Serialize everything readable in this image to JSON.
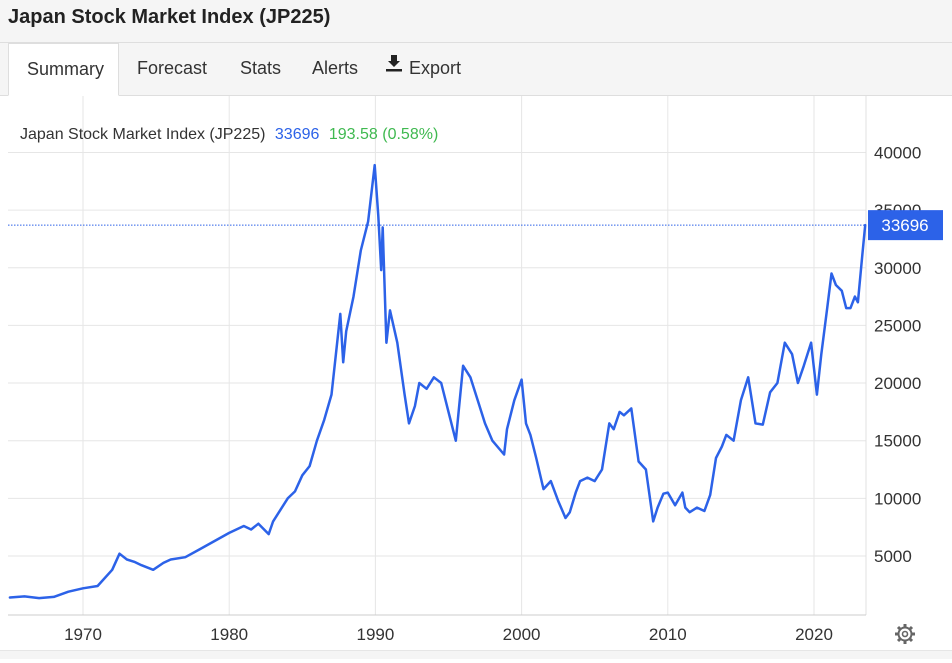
{
  "page": {
    "title": "Japan Stock Market Index (JP225)"
  },
  "tabs": [
    {
      "label": "Summary",
      "active": true
    },
    {
      "label": "Forecast",
      "active": false
    },
    {
      "label": "Stats",
      "active": false
    },
    {
      "label": "Alerts",
      "active": false
    },
    {
      "label": "Export",
      "active": false,
      "icon": "download-icon"
    }
  ],
  "legend": {
    "name": "Japan Stock Market Index (JP225)",
    "value": "33696",
    "change": "193.58 (0.58%)"
  },
  "price_label": "33696",
  "colors": {
    "line": "#2c62e8",
    "value_text": "#2c62e8",
    "change_text": "#3fb950",
    "price_badge": "#2c62e8",
    "grid": "#e6e6e6"
  },
  "chart_data": {
    "type": "line",
    "title": "Japan Stock Market Index (JP225)",
    "xlabel": "",
    "ylabel": "",
    "xlim": [
      1965.0,
      2024.5
    ],
    "ylim": [
      0,
      45000
    ],
    "x_ticks": [
      1970,
      1980,
      1990,
      2000,
      2010,
      2020
    ],
    "x_tick_labels": [
      "1970",
      "1980",
      "1990",
      "2000",
      "2010",
      "2020"
    ],
    "y_ticks": [
      5000,
      10000,
      15000,
      20000,
      25000,
      30000,
      35000,
      40000
    ],
    "y_tick_labels": [
      "5000",
      "10000",
      "15000",
      "20000",
      "25000",
      "30000",
      "35000",
      "40000"
    ],
    "grid": true,
    "current_value": 33696,
    "series": [
      {
        "name": "Japan Stock Market Index (JP225)",
        "x": [
          1965.0,
          1966.0,
          1967.0,
          1968.0,
          1969.0,
          1970.0,
          1971.0,
          1972.0,
          1972.5,
          1973.0,
          1973.5,
          1974.0,
          1974.8,
          1975.5,
          1976.0,
          1977.0,
          1978.0,
          1979.0,
          1980.0,
          1981.0,
          1981.5,
          1982.0,
          1982.7,
          1983.0,
          1984.0,
          1984.5,
          1985.0,
          1985.5,
          1986.0,
          1986.5,
          1987.0,
          1987.3,
          1987.6,
          1987.8,
          1988.0,
          1988.5,
          1989.0,
          1989.5,
          1989.95,
          1990.2,
          1990.4,
          1990.5,
          1990.75,
          1991.0,
          1991.5,
          1992.0,
          1992.3,
          1992.7,
          1993.0,
          1993.5,
          1994.0,
          1994.5,
          1995.0,
          1995.5,
          1996.0,
          1996.5,
          1997.0,
          1997.5,
          1998.0,
          1998.8,
          1999.0,
          1999.5,
          2000.0,
          2000.3,
          2000.6,
          2001.0,
          2001.5,
          2002.0,
          2002.5,
          2003.0,
          2003.3,
          2003.7,
          2004.0,
          2004.5,
          2005.0,
          2005.5,
          2006.0,
          2006.3,
          2006.7,
          2007.0,
          2007.5,
          2008.0,
          2008.5,
          2009.0,
          2009.3,
          2009.7,
          2010.0,
          2010.5,
          2011.0,
          2011.2,
          2011.5,
          2012.0,
          2012.5,
          2012.9,
          2013.3,
          2013.7,
          2014.0,
          2014.5,
          2015.0,
          2015.5,
          2016.0,
          2016.5,
          2017.0,
          2017.5,
          2018.0,
          2018.5,
          2018.9,
          2019.3,
          2019.8,
          2020.2,
          2020.5,
          2020.9,
          2021.2,
          2021.5,
          2021.9,
          2022.2,
          2022.5,
          2022.8,
          2023.0,
          2023.3,
          2023.5
        ],
        "values": [
          1400,
          1500,
          1350,
          1450,
          1900,
          2200,
          2400,
          3800,
          5200,
          4700,
          4500,
          4200,
          3800,
          4400,
          4700,
          4900,
          5600,
          6300,
          7000,
          7600,
          7300,
          7800,
          6900,
          8000,
          10000,
          10600,
          12000,
          12800,
          15000,
          16800,
          19000,
          22500,
          26000,
          21800,
          24500,
          27500,
          31500,
          34000,
          38900,
          34500,
          29800,
          33500,
          23500,
          26300,
          23500,
          19000,
          16500,
          18000,
          20000,
          19500,
          20500,
          20000,
          17500,
          15000,
          21500,
          20500,
          18500,
          16500,
          15000,
          13800,
          16000,
          18500,
          20300,
          16500,
          15500,
          13500,
          10800,
          11500,
          9800,
          8300,
          8800,
          10500,
          11500,
          11800,
          11500,
          12500,
          16500,
          16000,
          17500,
          17200,
          17800,
          13200,
          12500,
          8000,
          9200,
          10400,
          10500,
          9400,
          10500,
          9200,
          8800,
          9200,
          8900,
          10300,
          13500,
          14500,
          15500,
          15000,
          18500,
          20500,
          16500,
          16400,
          19200,
          20000,
          23500,
          22500,
          20000,
          21500,
          23500,
          19000,
          22500,
          26500,
          29500,
          28500,
          28000,
          26500,
          26500,
          27500,
          27000,
          31000,
          33696
        ]
      }
    ]
  }
}
